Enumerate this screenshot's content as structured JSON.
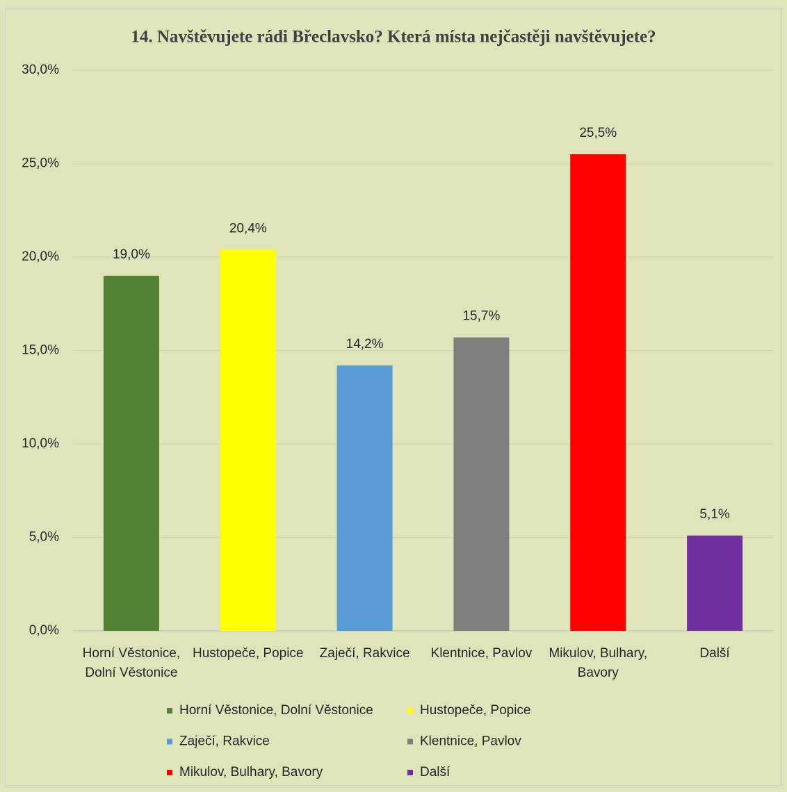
{
  "chart_data": {
    "type": "bar",
    "title": "14. Navštěvujete rádi Břeclavsko? Která místa nejčastěji navštěvujete?",
    "categories": [
      "Horní Věstonice, Dolní Věstonice",
      "Hustopeče, Popice",
      "Zaječí, Rakvice",
      "Klentnice, Pavlov",
      "Mikulov, Bulhary, Bavory",
      "Další"
    ],
    "values": [
      19.0,
      20.4,
      14.2,
      15.7,
      25.5,
      5.1
    ],
    "value_labels": [
      "19,0%",
      "20,4%",
      "14,2%",
      "15,7%",
      "25,5%",
      "5,1%"
    ],
    "colors": [
      "#548235",
      "#ffff00",
      "#5b9bd5",
      "#7f7f7f",
      "#ff0000",
      "#7030a0"
    ],
    "ylim": [
      0,
      30
    ],
    "yticks": [
      {
        "value": 0,
        "label": "0,0%"
      },
      {
        "value": 5,
        "label": "5,0%"
      },
      {
        "value": 10,
        "label": "10,0%"
      },
      {
        "value": 15,
        "label": "15,0%"
      },
      {
        "value": 20,
        "label": "20,0%"
      },
      {
        "value": 25,
        "label": "25,0%"
      },
      {
        "value": 30,
        "label": "30,0%"
      }
    ],
    "grid": true,
    "legend": "bottom"
  }
}
